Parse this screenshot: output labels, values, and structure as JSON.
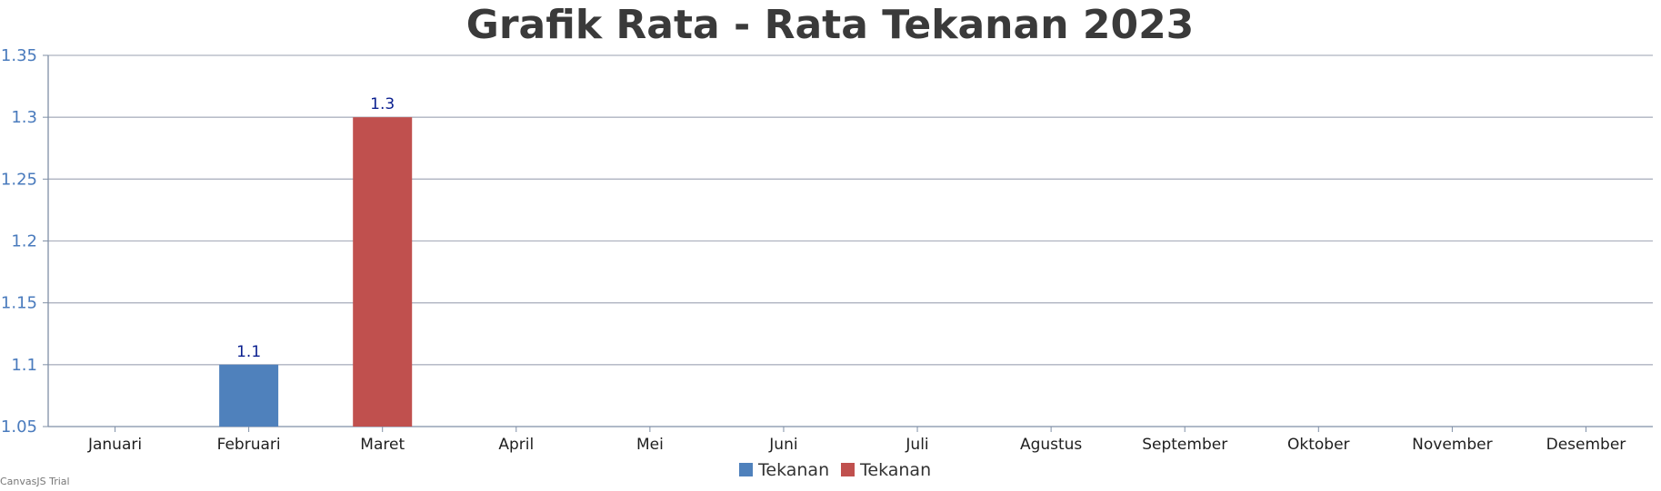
{
  "watermark": "CanvasJS Trial",
  "colors": {
    "title": "#3a3a3a",
    "grid": "#aeb3c0",
    "axis": "#7f8fa6",
    "y_tick_label": "#4a7bbd",
    "x_tick_label": "#1f1f1f",
    "data_label": "#0a1f8f"
  },
  "chart_data": {
    "type": "bar",
    "title": "Grafik Rata - Rata Tekanan 2023",
    "xlabel": "",
    "ylabel": "",
    "categories": [
      "Januari",
      "Februari",
      "Maret",
      "April",
      "Mei",
      "Juni",
      "Juli",
      "Agustus",
      "September",
      "Oktober",
      "November",
      "Desember"
    ],
    "ylim": [
      1.05,
      1.35
    ],
    "yticks": [
      "1.05",
      "1.1",
      "1.15",
      "1.2",
      "1.25",
      "1.3",
      "1.35"
    ],
    "grid": true,
    "legend_position": "bottom",
    "series": [
      {
        "name": "Tekanan",
        "color": "#4f81bc",
        "values": [
          null,
          1.1,
          null,
          null,
          null,
          null,
          null,
          null,
          null,
          null,
          null,
          null
        ],
        "labels": [
          null,
          "1.1",
          null,
          null,
          null,
          null,
          null,
          null,
          null,
          null,
          null,
          null
        ]
      },
      {
        "name": "Tekanan",
        "color": "#c0504e",
        "values": [
          null,
          null,
          1.3,
          null,
          null,
          null,
          null,
          null,
          null,
          null,
          null,
          null
        ],
        "labels": [
          null,
          null,
          "1.3",
          null,
          null,
          null,
          null,
          null,
          null,
          null,
          null,
          null
        ]
      }
    ]
  }
}
